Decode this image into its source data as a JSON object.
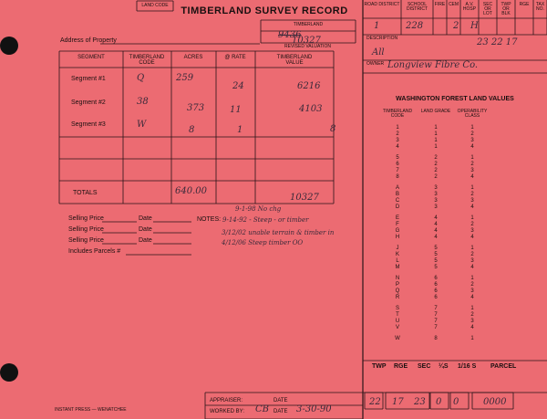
{
  "header": {
    "land_code_label": "LAND CODE",
    "title": "TIMBERLAND SURVEY RECORD",
    "timberland_label": "TIMBERLAND",
    "old_value": "9436",
    "value": "10327",
    "revised_label": "REVISED VALUATION",
    "address_label": "Address of Property"
  },
  "segments_table": {
    "headers": [
      "SEGMENT",
      "TIMBERLAND CODE",
      "ACRES",
      "@ RATE",
      "TIMBERLAND VALUE"
    ],
    "rows": [
      [
        "Segment #1",
        "Q",
        "259",
        "24",
        "6216"
      ],
      [
        "Segment #2",
        "38",
        "373",
        "11",
        "4103"
      ],
      [
        "Segment #3",
        "W",
        "8",
        "1",
        "8"
      ]
    ],
    "totals": {
      "label": "TOTALS",
      "acres": "640.00",
      "value": "10327"
    }
  },
  "selling": {
    "lines": [
      {
        "price": "Selling Price",
        "date": "Date"
      },
      {
        "price": "Selling Price",
        "date": "Date"
      },
      {
        "price": "Selling Price",
        "date": "Date"
      }
    ],
    "parcels": "Includes Parcels #"
  },
  "notes": {
    "label": "NOTES:",
    "entries": [
      "9-1-98 No chg",
      "9-14-92 - Steep - or timber",
      "3/12/02 unable terrain & timber in",
      "4/12/06 Steep timber OO"
    ]
  },
  "footer": {
    "appraiser": "APPRAISER:",
    "appraiser_date": "DATE",
    "worked_by": "WORKED BY:",
    "worked_by_value": "CB",
    "worked_date": "DATE",
    "worked_date_value": "3-30-90",
    "printer": "INSTANT PRESS — WENATCHEE"
  },
  "right_header": {
    "cells": [
      {
        "label": "ROAD DISTRICT",
        "value": "1"
      },
      {
        "label": "SCHOOL DISTRICT",
        "value": "228"
      },
      {
        "label": "FIRE"
      },
      {
        "label": "CEM",
        "value": "2"
      },
      {
        "label": "A.V. HOSP",
        "value": "H"
      },
      {
        "label": "SEC OR LOT"
      },
      {
        "label": "TWP OR BLK"
      },
      {
        "label": "RGE"
      },
      {
        "label": "TAX NO."
      }
    ]
  },
  "description": {
    "label": "DESCRIPTION",
    "value": "23 22 17",
    "text": "All"
  },
  "owner": {
    "label": "OWNER",
    "value": "Longview Fibre Co."
  },
  "land_values": {
    "title": "WASHINGTON FOREST LAND VALUES",
    "headers": [
      "TIMBERLAND CODE",
      "LAND GRADE",
      "OPERABILITY CLASS"
    ],
    "rows": [
      [
        "1",
        "1",
        "1"
      ],
      [
        "2",
        "1",
        "2"
      ],
      [
        "3",
        "1",
        "3"
      ],
      [
        "4",
        "1",
        "4"
      ],
      [
        "5",
        "2",
        "1"
      ],
      [
        "6",
        "2",
        "2"
      ],
      [
        "7",
        "2",
        "3"
      ],
      [
        "8",
        "2",
        "4"
      ],
      [
        "A",
        "3",
        "1"
      ],
      [
        "B",
        "3",
        "2"
      ],
      [
        "C",
        "3",
        "3"
      ],
      [
        "D",
        "3",
        "4"
      ],
      [
        "E",
        "4",
        "1"
      ],
      [
        "F",
        "4",
        "2"
      ],
      [
        "G",
        "4",
        "3"
      ],
      [
        "H",
        "4",
        "4"
      ],
      [
        "J",
        "5",
        "1"
      ],
      [
        "K",
        "5",
        "2"
      ],
      [
        "L",
        "5",
        "3"
      ],
      [
        "M",
        "5",
        "4"
      ],
      [
        "N",
        "6",
        "1"
      ],
      [
        "P",
        "6",
        "2"
      ],
      [
        "Q",
        "6",
        "3"
      ],
      [
        "R",
        "6",
        "4"
      ],
      [
        "S",
        "7",
        "1"
      ],
      [
        "T",
        "7",
        "2"
      ],
      [
        "U",
        "7",
        "3"
      ],
      [
        "V",
        "7",
        "4"
      ],
      [
        "W",
        "8",
        "1"
      ]
    ]
  },
  "parcel": {
    "headers": [
      "TWP",
      "RGE",
      "SEC",
      "¼S",
      "1/16 S",
      "PARCEL"
    ],
    "values": [
      "22",
      "17",
      "23",
      "0",
      "0",
      "0000"
    ]
  }
}
